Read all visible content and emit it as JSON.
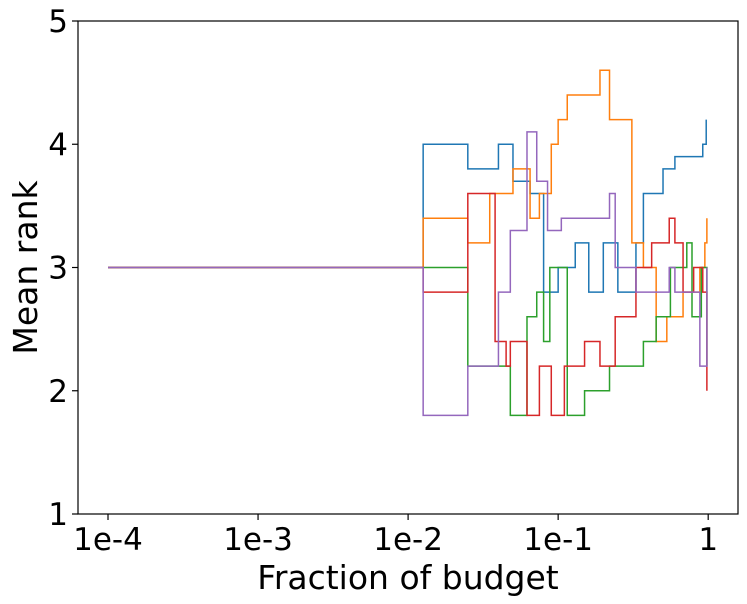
{
  "chart_data": {
    "type": "line",
    "title": "",
    "xlabel": "Fraction of budget",
    "ylabel": "Mean rank",
    "xscale": "log",
    "xlim": [
      6.31e-05,
      1.58
    ],
    "ylim": [
      1,
      5
    ],
    "grid": false,
    "legend": "none",
    "x_ticks": [
      {
        "value": 0.0001,
        "label": "1e-4"
      },
      {
        "value": 0.001,
        "label": "1e-3"
      },
      {
        "value": 0.01,
        "label": "1e-2"
      },
      {
        "value": 0.1,
        "label": "1e-1"
      },
      {
        "value": 1,
        "label": "1"
      }
    ],
    "y_ticks": [
      {
        "value": 1,
        "label": "1"
      },
      {
        "value": 2,
        "label": "2"
      },
      {
        "value": 3,
        "label": "3"
      },
      {
        "value": 4,
        "label": "4"
      },
      {
        "value": 5,
        "label": "5"
      }
    ],
    "series": [
      {
        "color": "#1f77b4",
        "points": [
          [
            0.0001,
            3
          ],
          [
            0.0126,
            3
          ],
          [
            0.0126,
            4
          ],
          [
            0.025,
            4
          ],
          [
            0.025,
            3.8
          ],
          [
            0.04,
            3.8
          ],
          [
            0.04,
            4
          ],
          [
            0.05,
            4
          ],
          [
            0.05,
            3.7
          ],
          [
            0.065,
            3.7
          ],
          [
            0.065,
            3.6
          ],
          [
            0.08,
            3.6
          ],
          [
            0.08,
            2.8
          ],
          [
            0.1,
            2.8
          ],
          [
            0.1,
            3
          ],
          [
            0.13,
            3
          ],
          [
            0.13,
            3.2
          ],
          [
            0.16,
            3.2
          ],
          [
            0.16,
            2.8
          ],
          [
            0.2,
            2.8
          ],
          [
            0.2,
            3.2
          ],
          [
            0.25,
            3.2
          ],
          [
            0.25,
            2.8
          ],
          [
            0.33,
            2.8
          ],
          [
            0.33,
            3.2
          ],
          [
            0.37,
            3.2
          ],
          [
            0.37,
            3.6
          ],
          [
            0.5,
            3.6
          ],
          [
            0.5,
            3.8
          ],
          [
            0.6,
            3.8
          ],
          [
            0.6,
            3.9
          ],
          [
            0.92,
            3.9
          ],
          [
            0.92,
            4
          ],
          [
            0.97,
            4
          ],
          [
            0.97,
            4.2
          ]
        ]
      },
      {
        "color": "#ff7f0e",
        "points": [
          [
            0.0001,
            3
          ],
          [
            0.0126,
            3
          ],
          [
            0.0126,
            3.4
          ],
          [
            0.025,
            3.4
          ],
          [
            0.025,
            3.2
          ],
          [
            0.035,
            3.2
          ],
          [
            0.035,
            3.6
          ],
          [
            0.05,
            3.6
          ],
          [
            0.05,
            3.8
          ],
          [
            0.065,
            3.8
          ],
          [
            0.065,
            3.4
          ],
          [
            0.075,
            3.4
          ],
          [
            0.075,
            3.6
          ],
          [
            0.09,
            3.6
          ],
          [
            0.09,
            4
          ],
          [
            0.1,
            4
          ],
          [
            0.1,
            4.2
          ],
          [
            0.115,
            4.2
          ],
          [
            0.115,
            4.4
          ],
          [
            0.19,
            4.4
          ],
          [
            0.19,
            4.6
          ],
          [
            0.22,
            4.6
          ],
          [
            0.22,
            4.2
          ],
          [
            0.31,
            4.2
          ],
          [
            0.31,
            3.2
          ],
          [
            0.37,
            3.2
          ],
          [
            0.37,
            3
          ],
          [
            0.45,
            3
          ],
          [
            0.45,
            2.4
          ],
          [
            0.53,
            2.4
          ],
          [
            0.53,
            2.6
          ],
          [
            0.68,
            2.6
          ],
          [
            0.68,
            2.8
          ],
          [
            0.88,
            2.8
          ],
          [
            0.88,
            3
          ],
          [
            0.95,
            3
          ],
          [
            0.95,
            3.2
          ],
          [
            0.98,
            3.2
          ],
          [
            0.98,
            3.4
          ]
        ]
      },
      {
        "color": "#2ca02c",
        "points": [
          [
            0.0001,
            3
          ],
          [
            0.025,
            3
          ],
          [
            0.025,
            2.2
          ],
          [
            0.048,
            2.2
          ],
          [
            0.048,
            1.8
          ],
          [
            0.062,
            1.8
          ],
          [
            0.062,
            2.6
          ],
          [
            0.072,
            2.6
          ],
          [
            0.072,
            2.8
          ],
          [
            0.08,
            2.8
          ],
          [
            0.08,
            2.4
          ],
          [
            0.088,
            2.4
          ],
          [
            0.088,
            3
          ],
          [
            0.115,
            3
          ],
          [
            0.115,
            1.8
          ],
          [
            0.15,
            1.8
          ],
          [
            0.15,
            2
          ],
          [
            0.22,
            2
          ],
          [
            0.22,
            2.2
          ],
          [
            0.37,
            2.2
          ],
          [
            0.37,
            2.4
          ],
          [
            0.45,
            2.4
          ],
          [
            0.45,
            2.6
          ],
          [
            0.56,
            2.6
          ],
          [
            0.56,
            3
          ],
          [
            0.72,
            3
          ],
          [
            0.72,
            3.2
          ],
          [
            0.78,
            3.2
          ],
          [
            0.78,
            2.6
          ],
          [
            0.9,
            2.6
          ],
          [
            0.9,
            3
          ],
          [
            0.98,
            3
          ],
          [
            0.98,
            2.2
          ]
        ]
      },
      {
        "color": "#d62728",
        "points": [
          [
            0.0001,
            3
          ],
          [
            0.0126,
            3
          ],
          [
            0.0126,
            2.8
          ],
          [
            0.025,
            2.8
          ],
          [
            0.025,
            3.6
          ],
          [
            0.038,
            3.6
          ],
          [
            0.038,
            2.4
          ],
          [
            0.045,
            2.4
          ],
          [
            0.045,
            2.2
          ],
          [
            0.048,
            2.2
          ],
          [
            0.048,
            2.4
          ],
          [
            0.062,
            2.4
          ],
          [
            0.062,
            1.8
          ],
          [
            0.075,
            1.8
          ],
          [
            0.075,
            2.2
          ],
          [
            0.09,
            2.2
          ],
          [
            0.09,
            1.8
          ],
          [
            0.11,
            1.8
          ],
          [
            0.11,
            2.2
          ],
          [
            0.15,
            2.2
          ],
          [
            0.15,
            2.4
          ],
          [
            0.19,
            2.4
          ],
          [
            0.19,
            2.2
          ],
          [
            0.24,
            2.2
          ],
          [
            0.24,
            2.6
          ],
          [
            0.33,
            2.6
          ],
          [
            0.33,
            3
          ],
          [
            0.42,
            3
          ],
          [
            0.42,
            3.2
          ],
          [
            0.55,
            3.2
          ],
          [
            0.55,
            3.4
          ],
          [
            0.6,
            3.4
          ],
          [
            0.6,
            3.2
          ],
          [
            0.68,
            3.2
          ],
          [
            0.68,
            2.8
          ],
          [
            0.8,
            2.8
          ],
          [
            0.8,
            3
          ],
          [
            0.92,
            3
          ],
          [
            0.92,
            2.8
          ],
          [
            0.98,
            2.8
          ],
          [
            0.98,
            2
          ]
        ]
      },
      {
        "color": "#9467bd",
        "points": [
          [
            0.0001,
            3
          ],
          [
            0.0126,
            3
          ],
          [
            0.0126,
            1.8
          ],
          [
            0.025,
            1.8
          ],
          [
            0.025,
            2.2
          ],
          [
            0.04,
            2.2
          ],
          [
            0.04,
            2.8
          ],
          [
            0.048,
            2.8
          ],
          [
            0.048,
            3.3
          ],
          [
            0.062,
            3.3
          ],
          [
            0.062,
            4.1
          ],
          [
            0.072,
            4.1
          ],
          [
            0.072,
            3.7
          ],
          [
            0.085,
            3.7
          ],
          [
            0.085,
            3.3
          ],
          [
            0.105,
            3.3
          ],
          [
            0.105,
            3.4
          ],
          [
            0.22,
            3.4
          ],
          [
            0.22,
            3.6
          ],
          [
            0.24,
            3.6
          ],
          [
            0.24,
            3
          ],
          [
            0.33,
            3
          ],
          [
            0.33,
            2.8
          ],
          [
            0.55,
            2.8
          ],
          [
            0.55,
            3
          ],
          [
            0.6,
            3
          ],
          [
            0.6,
            2.8
          ],
          [
            0.88,
            2.8
          ],
          [
            0.88,
            2.2
          ],
          [
            0.98,
            2.2
          ],
          [
            0.98,
            3
          ]
        ]
      }
    ]
  }
}
